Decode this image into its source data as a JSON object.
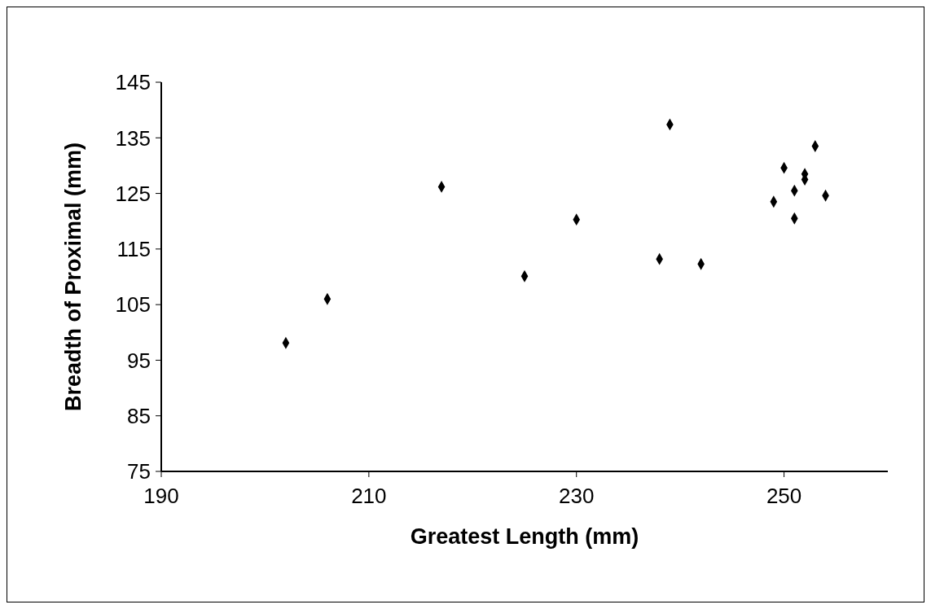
{
  "chart_data": {
    "type": "scatter",
    "xlabel": "Greatest Length (mm)",
    "ylabel": "Breadth of Proximal (mm)",
    "x": [
      202,
      206,
      217,
      225,
      230,
      238,
      239,
      242,
      249,
      250,
      251,
      251,
      252,
      252,
      253,
      254
    ],
    "series": [
      {
        "color": "#000000",
        "values": [
          98.1,
          106,
          126.2,
          110.1,
          120.3,
          113.2,
          137.4,
          112.3,
          123.5,
          129.6,
          125.5,
          120.5,
          128.5,
          127.5,
          133.5,
          124.6
        ]
      }
    ],
    "marker": "diamond",
    "xlim": [
      190,
      260
    ],
    "xticks": [
      190,
      210,
      230,
      250
    ],
    "ylim": [
      75,
      145
    ],
    "yticks": [
      75,
      85,
      95,
      105,
      115,
      125,
      135,
      145
    ],
    "grid": false,
    "legend": false
  }
}
